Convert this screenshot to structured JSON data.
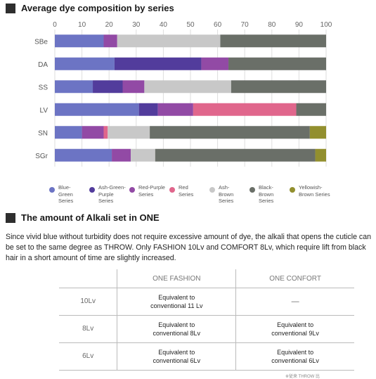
{
  "sections": {
    "chart_heading": "Average dye composition by series",
    "alkali_heading": "The amount of Alkali set in ONE",
    "alkali_paragraph": "Since vivid blue without turbidity does not require excessive amount of dye, the alkali that opens the cuticle can be set to the same degree as THROW. Only FASHION 10Lv and COMFORT 8Lv, which require lift from black hair in a short amount of time are slightly increased."
  },
  "chart_data": {
    "type": "bar",
    "orientation": "horizontal",
    "stacked": true,
    "title": "Average dye composition by series",
    "xlim": [
      0,
      100
    ],
    "xticks": [
      0,
      10,
      20,
      30,
      40,
      50,
      60,
      70,
      80,
      90,
      100
    ],
    "categories": [
      "SBe",
      "DA",
      "SS",
      "LV",
      "SN",
      "SGr"
    ],
    "legend_position": "bottom",
    "grid": true,
    "series": [
      {
        "name": "Blue-Green Series",
        "color": "#6c74c4",
        "values": [
          18,
          22,
          14,
          31,
          10,
          21
        ]
      },
      {
        "name": "Ash-Green-Purple Series",
        "color": "#523c9c",
        "values": [
          0,
          32,
          11,
          7,
          0,
          0
        ]
      },
      {
        "name": "Red-Purple Series",
        "color": "#924aa5",
        "values": [
          5,
          10,
          8,
          13,
          8,
          7
        ]
      },
      {
        "name": "Red Series",
        "color": "#e0668c",
        "values": [
          0,
          0,
          0,
          38,
          1.5,
          0
        ]
      },
      {
        "name": "Ash-Brown Series",
        "color": "#c8c8c8",
        "values": [
          38,
          0,
          32,
          0,
          15.5,
          9
        ]
      },
      {
        "name": "Black-Brown Series",
        "color": "#6a6f68",
        "values": [
          39,
          36,
          35,
          11,
          59,
          59
        ]
      },
      {
        "name": "Yellowish-Brown Series",
        "color": "#928f2e",
        "values": [
          0,
          0,
          0,
          0,
          6,
          4
        ]
      }
    ]
  },
  "legend_items": [
    {
      "label": "Blue-\nGreen\nSeries",
      "color": "#6c74c4"
    },
    {
      "label": "Ash-Green-\nPurple\nSeries",
      "color": "#523c9c"
    },
    {
      "label": "Red-Purple\nSeries",
      "color": "#924aa5"
    },
    {
      "label": "Red\nSeries",
      "color": "#e0668c"
    },
    {
      "label": "Ash-\nBrown\nSeries",
      "color": "#c8c8c8"
    },
    {
      "label": "Black-\nBrown\nSeries",
      "color": "#6a6f68"
    },
    {
      "label": "Yellowish-\nBrown Series",
      "color": "#928f2e"
    }
  ],
  "table": {
    "columns": [
      "ONE FASHION",
      "ONE CONFORT"
    ],
    "rows": [
      {
        "level": "10Lv",
        "fashion": "Equivalent to\nconventional 11 Lv",
        "confort": "—"
      },
      {
        "level": "8Lv",
        "fashion": "Equivalent to\nconventional 8Lv",
        "confort": "Equivalent to\nconventional 9Lv"
      },
      {
        "level": "6Lv",
        "fashion": "Equivalent to\nconventional 6Lv",
        "confort": "Equivalent to\nconventional 6Lv"
      }
    ],
    "note": "※従来 THROW 比"
  }
}
